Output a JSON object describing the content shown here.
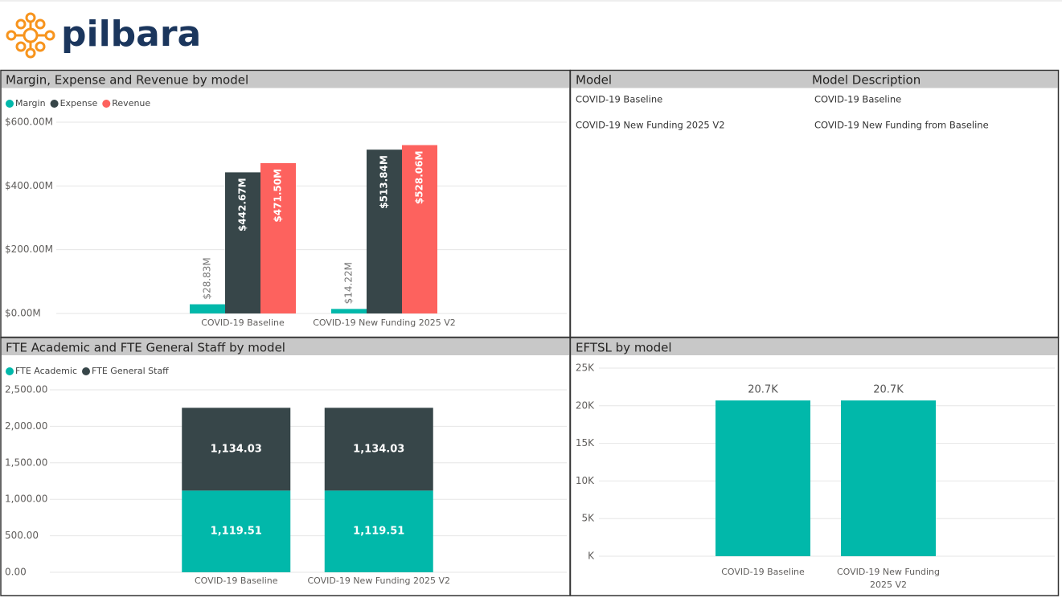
{
  "header": {
    "logo": "pilbara"
  },
  "table": {
    "columns": [
      "Model",
      "Model Description"
    ],
    "rows": [
      [
        "COVID-19 Baseline",
        "COVID-19 Baseline"
      ],
      [
        "COVID-19 New Funding 2025 V2",
        "COVID-19 New Funding from Baseline"
      ]
    ]
  },
  "chart_data": [
    {
      "type": "bar",
      "title": "Margin, Expense and Revenue by model",
      "categories": [
        "COVID-19 Baseline",
        "COVID-19 New Funding 2025 V2"
      ],
      "series": [
        {
          "name": "Margin",
          "color": "#01b8aa",
          "values": [
            28.83,
            14.22
          ],
          "value_labels": [
            "$28.83M",
            "$14.22M"
          ]
        },
        {
          "name": "Expense",
          "color": "#374649",
          "values": [
            442.67,
            513.84
          ],
          "value_labels": [
            "$442.67M",
            "$513.84M"
          ]
        },
        {
          "name": "Revenue",
          "color": "#fd625e",
          "values": [
            471.5,
            528.06
          ],
          "value_labels": [
            "$471.50M",
            "$528.06M"
          ]
        }
      ],
      "ylim": [
        0,
        600
      ],
      "yticks": [
        {
          "value": 0,
          "label": "$0.00M"
        },
        {
          "value": 200,
          "label": "$200.00M"
        },
        {
          "value": 400,
          "label": "$400.00M"
        },
        {
          "value": 600,
          "label": "$600.00M"
        }
      ],
      "grid": true,
      "legend": "top-left"
    },
    {
      "type": "stacked_bar",
      "title": "FTE Academic and FTE General Staff by model",
      "categories": [
        "COVID-19 Baseline",
        "COVID-19 New Funding 2025 V2"
      ],
      "series": [
        {
          "name": "FTE Academic",
          "color": "#01b8aa",
          "values": [
            1119.51,
            1119.51
          ],
          "value_labels": [
            "1,119.51",
            "1,119.51"
          ]
        },
        {
          "name": "FTE General Staff",
          "color": "#374649",
          "values": [
            1134.03,
            1134.03
          ],
          "value_labels": [
            "1,134.03",
            "1,134.03"
          ]
        }
      ],
      "ylim": [
        0,
        2500
      ],
      "yticks": [
        {
          "value": 0,
          "label": "0.00"
        },
        {
          "value": 500,
          "label": "500.00"
        },
        {
          "value": 1000,
          "label": "1,000.00"
        },
        {
          "value": 1500,
          "label": "1,500.00"
        },
        {
          "value": 2000,
          "label": "2,000.00"
        },
        {
          "value": 2500,
          "label": "2,500.00"
        }
      ],
      "grid": true,
      "legend": "top-left"
    },
    {
      "type": "bar",
      "title": "EFTSL by model",
      "categories": [
        "COVID-19 Baseline",
        "COVID-19 New Funding 2025 V2"
      ],
      "series": [
        {
          "color": "#01b8aa",
          "values": [
            20700,
            20700
          ],
          "value_labels": [
            "20.7K",
            "20.7K"
          ]
        }
      ],
      "ylim": [
        0,
        25000
      ],
      "yticks": [
        {
          "value": 0,
          "label": "K"
        },
        {
          "value": 5000,
          "label": "5K"
        },
        {
          "value": 10000,
          "label": "10K"
        },
        {
          "value": 15000,
          "label": "15K"
        },
        {
          "value": 20000,
          "label": "20K"
        },
        {
          "value": 25000,
          "label": "25K"
        }
      ],
      "grid": true
    }
  ]
}
